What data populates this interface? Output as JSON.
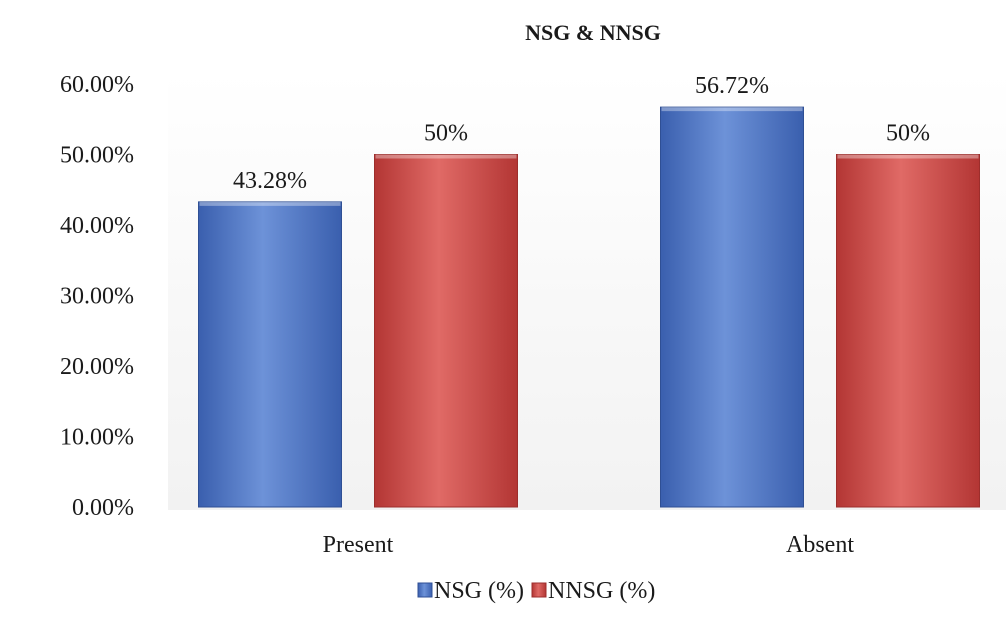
{
  "chart_data": {
    "type": "bar",
    "title": "NSG & NNSG",
    "xlabel": "",
    "ylabel": "",
    "categories": [
      "Present",
      "Absent"
    ],
    "series": [
      {
        "name": "NSG (%)",
        "values": [
          43.28,
          56.72
        ],
        "labels": [
          "43.28%",
          "56.72%"
        ],
        "color": "#4a72c4"
      },
      {
        "name": "NNSG (%)",
        "values": [
          50,
          50
        ],
        "labels": [
          "50%",
          "50%"
        ],
        "color": "#c9413f"
      }
    ],
    "ylim": [
      0,
      60
    ],
    "yticks": [
      0,
      10,
      20,
      30,
      40,
      50,
      60
    ],
    "ytick_labels": [
      "0.00%",
      "10.00%",
      "20.00%",
      "30.00%",
      "40.00%",
      "50.00%",
      "60.00%"
    ],
    "grid": false,
    "legend_position": "bottom"
  }
}
